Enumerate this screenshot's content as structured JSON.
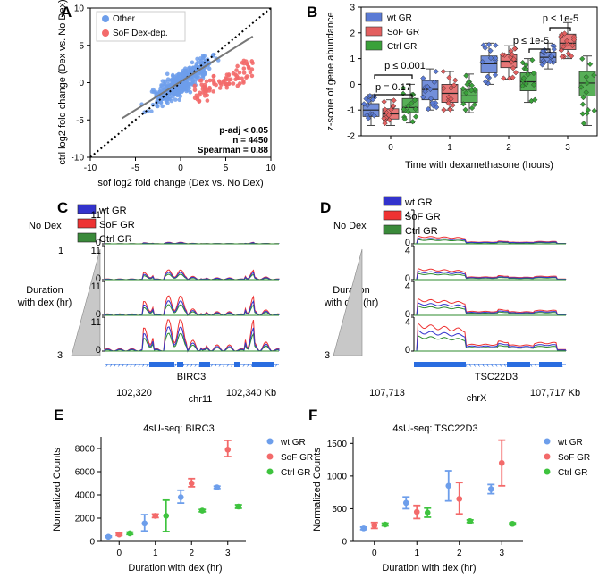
{
  "chart_data": [
    {
      "panel": "A",
      "type": "scatter",
      "xlabel": "sof log2 fold change (Dex vs. No Dex)",
      "ylabel": "ctrl log2 fold change (Dex vs. No Dex)",
      "xlim": [
        -10,
        10
      ],
      "ylim": [
        -10,
        10
      ],
      "xticks": [
        "-10",
        "-5",
        "0",
        "5",
        "10"
      ],
      "yticks": [
        "-10",
        "-5",
        "0",
        "5",
        "10"
      ],
      "legend": [
        "Other",
        "SoF Dex-dep."
      ],
      "colors": {
        "other": "#6d9eeb",
        "sof": "#f36a6a"
      },
      "stats": [
        "p-adj < 0.05",
        "n = 4450",
        "Spearman = 0.88"
      ],
      "fit_line": {
        "x": [
          -6.5,
          8
        ],
        "y": [
          -4.8,
          6.2
        ]
      },
      "identity_line": true
    },
    {
      "panel": "B",
      "type": "box",
      "xlabel": "Time with dexamethasone (hours)",
      "ylabel": "z-score of gene abundance",
      "ylim": [
        -2,
        3
      ],
      "yticks": [
        "-2",
        "-1",
        "0",
        "1",
        "2",
        "3"
      ],
      "categories": [
        "0",
        "1",
        "2",
        "3"
      ],
      "series": [
        {
          "name": "wt GR",
          "color": "#5b7bd5",
          "boxes": [
            [
              -1.6,
              -1.25,
              -1.0,
              -0.75,
              -0.4
            ],
            [
              -1.0,
              -0.6,
              -0.2,
              0.15,
              0.6
            ],
            [
              0.0,
              0.45,
              0.8,
              1.1,
              1.6
            ],
            [
              0.6,
              0.85,
              1.05,
              1.25,
              1.6
            ]
          ]
        },
        {
          "name": "SoF GR",
          "color": "#e35f5f",
          "boxes": [
            [
              -1.6,
              -1.35,
              -1.15,
              -0.95,
              -0.6
            ],
            [
              -1.0,
              -0.7,
              -0.35,
              0.0,
              0.5
            ],
            [
              0.2,
              0.65,
              0.9,
              1.15,
              1.5
            ],
            [
              1.0,
              1.35,
              1.6,
              1.95,
              2.4
            ]
          ]
        },
        {
          "name": "Ctrl GR",
          "color": "#3aa13a",
          "boxes": [
            [
              -1.5,
              -1.1,
              -0.9,
              -0.55,
              0.0
            ],
            [
              -1.1,
              -0.7,
              -0.45,
              -0.2,
              0.4
            ],
            [
              -0.7,
              -0.25,
              0.1,
              0.45,
              1.0
            ],
            [
              -1.6,
              -0.45,
              0.05,
              0.5,
              1.1
            ]
          ]
        }
      ],
      "annotations": [
        "p = 0.17",
        "p ≤ 0.001",
        "p ≤ 1e-5",
        "p ≤ 1e-5"
      ]
    },
    {
      "panel": "C",
      "type": "area",
      "legend": [
        "wt GR",
        "SoF GR",
        "Ctrl GR"
      ],
      "row_labels": [
        "No Dex",
        "1",
        "Duration",
        "with dex (hr)",
        "3"
      ],
      "track_ylabels": [
        "11",
        "0",
        "11",
        "0",
        "11",
        "0",
        "11",
        "0",
        "11",
        "0"
      ],
      "gene": "BIRC3",
      "chrom": "chr11",
      "xticks": [
        "102,320",
        "102,340 Kb"
      ]
    },
    {
      "panel": "D",
      "type": "area",
      "legend": [
        "wt GR",
        "SoF GR",
        "Ctrl GR"
      ],
      "row_labels": [
        "No Dex",
        "Duration",
        "with dex (hr)",
        "3"
      ],
      "track_ylabels": [
        "4",
        "0",
        "4",
        "0",
        "4",
        "0",
        "4",
        "0",
        "4",
        "0"
      ],
      "gene": "TSC22D3",
      "chrom": "chrX",
      "xticks": [
        "107,713",
        "107,717 Kb"
      ]
    },
    {
      "panel": "E",
      "type": "scatter",
      "title": "4sU-seq: BIRC3",
      "xlabel": "Duration with dex (hr)",
      "ylabel": "Normalized Counts",
      "ylim": [
        0,
        9000
      ],
      "yticks": [
        "0",
        "2000",
        "4000",
        "6000",
        "8000"
      ],
      "categories": [
        "0",
        "1",
        "2",
        "3"
      ],
      "series": [
        {
          "name": "wt GR",
          "color": "#6d9eeb",
          "values": [
            400,
            1550,
            3800,
            4650
          ],
          "err": [
            [
              350,
              470
            ],
            [
              900,
              2300
            ],
            [
              3300,
              4400
            ],
            [
              4550,
              4750
            ]
          ]
        },
        {
          "name": "SoF GR",
          "color": "#f36a6a",
          "values": [
            600,
            2200,
            5000,
            7900
          ],
          "err": [
            [
              520,
              700
            ],
            [
              2050,
              2350
            ],
            [
              4700,
              5400
            ],
            [
              7300,
              8700
            ]
          ]
        },
        {
          "name": "Ctrl GR",
          "color": "#3ec33e",
          "values": [
            700,
            2200,
            2650,
            3000
          ],
          "err": [
            [
              600,
              800
            ],
            [
              850,
              3550
            ],
            [
              2550,
              2750
            ],
            [
              2850,
              3150
            ]
          ]
        }
      ]
    },
    {
      "panel": "F",
      "type": "scatter",
      "title": "4sU-seq: TSC22D3",
      "xlabel": "Duration with dex (hr)",
      "ylabel": "Normalized Counts",
      "ylim": [
        0,
        1600
      ],
      "yticks": [
        "0",
        "500",
        "1000",
        "1500"
      ],
      "categories": [
        "0",
        "1",
        "2",
        "3"
      ],
      "series": [
        {
          "name": "wt GR",
          "color": "#6d9eeb",
          "values": [
            200,
            590,
            850,
            800
          ],
          "err": [
            [
              180,
              220
            ],
            [
              500,
              680
            ],
            [
              620,
              1080
            ],
            [
              730,
              870
            ]
          ]
        },
        {
          "name": "SoF GR",
          "color": "#f36a6a",
          "values": [
            245,
            450,
            650,
            1200
          ],
          "err": [
            [
              200,
              290
            ],
            [
              350,
              550
            ],
            [
              420,
              900
            ],
            [
              850,
              1550
            ]
          ]
        },
        {
          "name": "Ctrl GR",
          "color": "#3ec33e",
          "values": [
            260,
            440,
            310,
            270
          ],
          "err": [
            [
              240,
              280
            ],
            [
              370,
              510
            ],
            [
              290,
              330
            ],
            [
              255,
              285
            ]
          ]
        }
      ]
    }
  ],
  "panel_letters": [
    "A",
    "B",
    "C",
    "D",
    "E",
    "F"
  ]
}
